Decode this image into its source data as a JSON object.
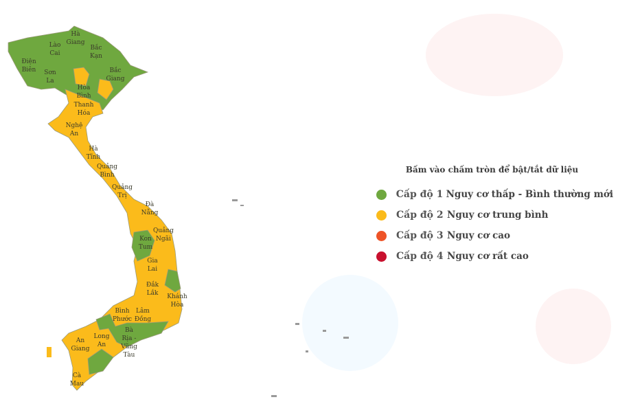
{
  "legend": {
    "title": "Bấm vào chấm tròn để bật/tắt dữ liệu",
    "items": [
      {
        "level": "Cấp độ 1",
        "description": "Nguy cơ thấp - Bình thường mới",
        "color": "#6fa83f"
      },
      {
        "level": "Cấp độ 2",
        "description": "Nguy cơ trung bình",
        "color": "#fbbb1b"
      },
      {
        "level": "Cấp độ 3",
        "description": "Nguy cơ cao",
        "color": "#ee5327"
      },
      {
        "level": "Cấp độ 4",
        "description": "Nguy cơ rất cao",
        "color": "#c8102e"
      }
    ]
  },
  "map": {
    "labels": {
      "ha_giang": [
        "Hà",
        "Giang"
      ],
      "lao_cai": [
        "Lào",
        "Cai"
      ],
      "bac_kan": [
        "Bắc",
        "Kạn"
      ],
      "dien_bien": [
        "Điện",
        "Biên"
      ],
      "son_la": [
        "Sơn",
        "La"
      ],
      "bac_giang": [
        "Bắc",
        "Giang"
      ],
      "hoa_binh": [
        "Hòa",
        "Bình"
      ],
      "thanh_hoa": [
        "Thanh",
        "Hóa"
      ],
      "nghe_an": [
        "Nghệ",
        "An"
      ],
      "ha_tinh": [
        "Hà",
        "Tĩnh"
      ],
      "quang_binh": [
        "Quảng",
        "Bình"
      ],
      "quang_tri": [
        "Quảng",
        "Trị"
      ],
      "da_nang": [
        "Đà",
        "Nẵng"
      ],
      "quang_ngai": [
        "Quảng",
        "Ngãi"
      ],
      "kon_tum": [
        "Kon",
        "Tum"
      ],
      "gia_lai": [
        "Gia",
        "Lai"
      ],
      "dak_lak": [
        "Đắk",
        "Lắk"
      ],
      "khanh_hoa": [
        "Khánh",
        "Hòa"
      ],
      "binh_phuoc": [
        "Bình",
        "Phước"
      ],
      "lam_dong": [
        "Lâm",
        "Đồng"
      ],
      "ba_ria": [
        "Bà",
        "Rịa -",
        "Vũng",
        "Tàu"
      ],
      "long_an": [
        "Long",
        "An"
      ],
      "an_giang": [
        "An",
        "Giang"
      ],
      "ca_mau": [
        "Cà",
        "Mau"
      ]
    }
  }
}
